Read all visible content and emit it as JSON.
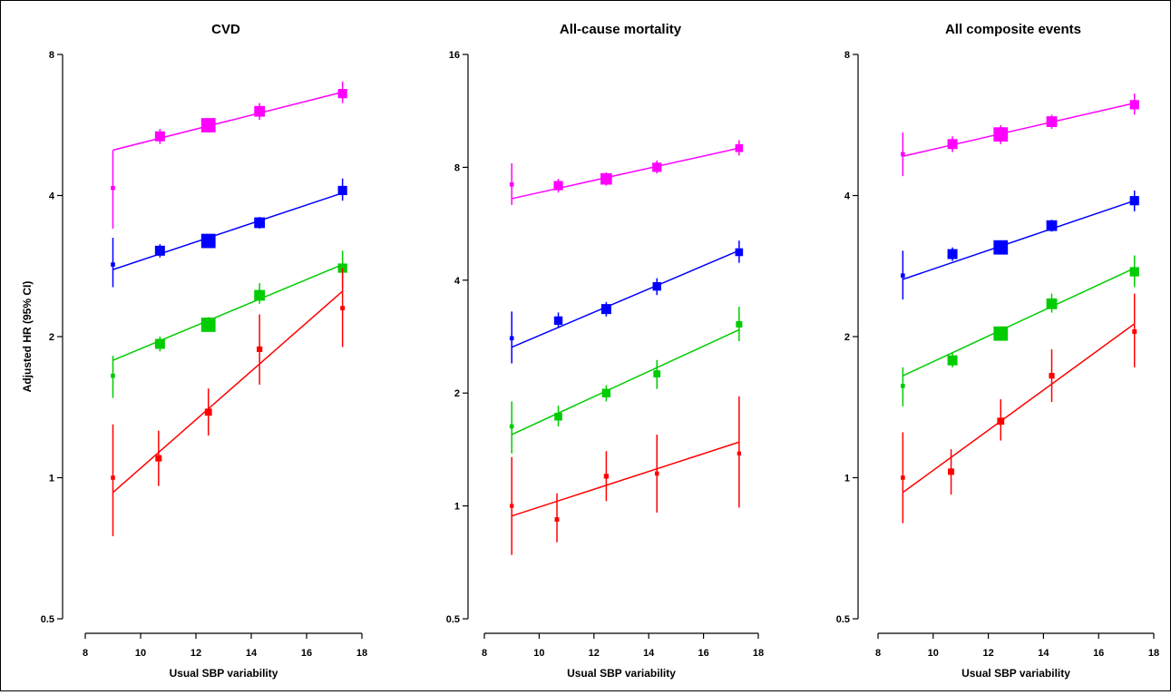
{
  "chart_data": [
    {
      "type": "scatter",
      "title": "CVD",
      "xlabel": "Usual SBP variability",
      "ylabel": "Adjusted HR (95% CI)",
      "xlim": [
        8,
        18
      ],
      "ylim": [
        0.5,
        8
      ],
      "y_scale": "log",
      "x_ticks": [
        8,
        10,
        12,
        14,
        16,
        18
      ],
      "y_ticks": [
        0.5,
        1,
        2,
        4,
        8
      ],
      "series": [
        {
          "color": "#ff00ff",
          "points": [
            {
              "x": 9.0,
              "y": 4.15,
              "lo": 3.4,
              "hi": 5.0,
              "w": 0.1
            },
            {
              "x": 10.7,
              "y": 5.35,
              "lo": 5.15,
              "hi": 5.55,
              "w": 0.5
            },
            {
              "x": 12.45,
              "y": 5.65,
              "lo": 5.45,
              "hi": 5.85,
              "w": 0.8
            },
            {
              "x": 14.3,
              "y": 6.05,
              "lo": 5.8,
              "hi": 6.3,
              "w": 0.55
            },
            {
              "x": 17.3,
              "y": 6.6,
              "lo": 6.3,
              "hi": 7.0,
              "w": 0.45
            }
          ],
          "fit": [
            [
              9.0,
              5.0
            ],
            [
              17.3,
              6.65
            ]
          ]
        },
        {
          "color": "#0000ff",
          "points": [
            {
              "x": 9.0,
              "y": 2.85,
              "lo": 2.55,
              "hi": 3.25,
              "w": 0.1
            },
            {
              "x": 10.7,
              "y": 3.05,
              "lo": 2.95,
              "hi": 3.15,
              "w": 0.5
            },
            {
              "x": 12.45,
              "y": 3.2,
              "lo": 3.12,
              "hi": 3.3,
              "w": 0.8
            },
            {
              "x": 14.3,
              "y": 3.5,
              "lo": 3.4,
              "hi": 3.6,
              "w": 0.55
            },
            {
              "x": 17.3,
              "y": 4.1,
              "lo": 3.9,
              "hi": 4.35,
              "w": 0.45
            }
          ],
          "fit": [
            [
              9.0,
              2.78
            ],
            [
              17.3,
              4.05
            ]
          ]
        },
        {
          "color": "#00cc00",
          "points": [
            {
              "x": 9.0,
              "y": 1.65,
              "lo": 1.48,
              "hi": 1.82,
              "w": 0.1
            },
            {
              "x": 10.7,
              "y": 1.93,
              "lo": 1.86,
              "hi": 2.0,
              "w": 0.5
            },
            {
              "x": 12.45,
              "y": 2.12,
              "lo": 2.05,
              "hi": 2.2,
              "w": 0.8
            },
            {
              "x": 14.3,
              "y": 2.45,
              "lo": 2.35,
              "hi": 2.6,
              "w": 0.55
            },
            {
              "x": 17.3,
              "y": 2.8,
              "lo": 2.55,
              "hi": 3.05,
              "w": 0.45
            }
          ],
          "fit": [
            [
              9.0,
              1.78
            ],
            [
              17.3,
              2.85
            ]
          ]
        },
        {
          "color": "#ff0000",
          "points": [
            {
              "x": 9.0,
              "y": 1.0,
              "lo": 0.75,
              "hi": 1.3,
              "w": 0.1
            },
            {
              "x": 10.65,
              "y": 1.1,
              "lo": 0.96,
              "hi": 1.26,
              "w": 0.25
            },
            {
              "x": 12.45,
              "y": 1.38,
              "lo": 1.23,
              "hi": 1.55,
              "w": 0.3
            },
            {
              "x": 14.3,
              "y": 1.88,
              "lo": 1.58,
              "hi": 2.23,
              "w": 0.2
            },
            {
              "x": 17.3,
              "y": 2.3,
              "lo": 1.9,
              "hi": 2.8,
              "w": 0.12
            }
          ],
          "fit": [
            [
              9.0,
              0.93
            ],
            [
              17.3,
              2.5
            ]
          ]
        }
      ]
    },
    {
      "type": "scatter",
      "title": "All-cause mortality",
      "xlabel": "Usual SBP variability",
      "xlim": [
        8,
        18
      ],
      "ylim": [
        0.5,
        16
      ],
      "y_scale": "log",
      "x_ticks": [
        8,
        10,
        12,
        14,
        16,
        18
      ],
      "y_ticks": [
        0.5,
        1,
        2,
        4,
        8,
        16
      ],
      "series": [
        {
          "color": "#ff00ff",
          "points": [
            {
              "x": 9.0,
              "y": 7.2,
              "lo": 6.35,
              "hi": 8.2,
              "w": 0.1
            },
            {
              "x": 10.7,
              "y": 7.15,
              "lo": 6.85,
              "hi": 7.45,
              "w": 0.45
            },
            {
              "x": 12.45,
              "y": 7.45,
              "lo": 7.15,
              "hi": 7.75,
              "w": 0.6
            },
            {
              "x": 14.3,
              "y": 8.0,
              "lo": 7.7,
              "hi": 8.35,
              "w": 0.45
            },
            {
              "x": 17.3,
              "y": 9.0,
              "lo": 8.6,
              "hi": 9.45,
              "w": 0.35
            }
          ],
          "fit": [
            [
              9.0,
              6.6
            ],
            [
              17.3,
              9.0
            ]
          ]
        },
        {
          "color": "#0000ff",
          "points": [
            {
              "x": 9.0,
              "y": 2.8,
              "lo": 2.4,
              "hi": 3.3,
              "w": 0.1
            },
            {
              "x": 10.7,
              "y": 3.12,
              "lo": 2.98,
              "hi": 3.28,
              "w": 0.4
            },
            {
              "x": 12.45,
              "y": 3.35,
              "lo": 3.2,
              "hi": 3.5,
              "w": 0.5
            },
            {
              "x": 14.3,
              "y": 3.85,
              "lo": 3.65,
              "hi": 4.05,
              "w": 0.4
            },
            {
              "x": 17.3,
              "y": 4.75,
              "lo": 4.45,
              "hi": 5.1,
              "w": 0.35
            }
          ],
          "fit": [
            [
              9.0,
              2.65
            ],
            [
              17.3,
              4.8
            ]
          ]
        },
        {
          "color": "#00cc00",
          "points": [
            {
              "x": 9.0,
              "y": 1.63,
              "lo": 1.38,
              "hi": 1.9,
              "w": 0.1
            },
            {
              "x": 10.7,
              "y": 1.73,
              "lo": 1.63,
              "hi": 1.85,
              "w": 0.35
            },
            {
              "x": 12.45,
              "y": 2.0,
              "lo": 1.9,
              "hi": 2.1,
              "w": 0.4
            },
            {
              "x": 14.3,
              "y": 2.25,
              "lo": 2.05,
              "hi": 2.45,
              "w": 0.3
            },
            {
              "x": 17.3,
              "y": 3.05,
              "lo": 2.75,
              "hi": 3.4,
              "w": 0.25
            }
          ],
          "fit": [
            [
              9.0,
              1.55
            ],
            [
              17.3,
              2.95
            ]
          ]
        },
        {
          "color": "#ff0000",
          "points": [
            {
              "x": 9.0,
              "y": 1.0,
              "lo": 0.74,
              "hi": 1.35,
              "w": 0.08
            },
            {
              "x": 10.65,
              "y": 0.92,
              "lo": 0.8,
              "hi": 1.08,
              "w": 0.12
            },
            {
              "x": 12.45,
              "y": 1.2,
              "lo": 1.03,
              "hi": 1.4,
              "w": 0.14
            },
            {
              "x": 14.3,
              "y": 1.22,
              "lo": 0.96,
              "hi": 1.55,
              "w": 0.1
            },
            {
              "x": 17.3,
              "y": 1.38,
              "lo": 0.99,
              "hi": 1.96,
              "w": 0.08
            }
          ],
          "fit": [
            [
              9.0,
              0.94
            ],
            [
              17.3,
              1.48
            ]
          ]
        }
      ]
    },
    {
      "type": "scatter",
      "title": "All composite events",
      "xlabel": "Usual SBP variability",
      "xlim": [
        8,
        18
      ],
      "ylim": [
        0.5,
        8
      ],
      "y_scale": "log",
      "x_ticks": [
        8,
        10,
        12,
        14,
        16,
        18
      ],
      "y_ticks": [
        0.5,
        1,
        2,
        4,
        8
      ],
      "series": [
        {
          "color": "#ff00ff",
          "points": [
            {
              "x": 8.9,
              "y": 4.9,
              "lo": 4.4,
              "hi": 5.45,
              "w": 0.1
            },
            {
              "x": 10.7,
              "y": 5.15,
              "lo": 4.95,
              "hi": 5.35,
              "w": 0.5
            },
            {
              "x": 12.45,
              "y": 5.4,
              "lo": 5.15,
              "hi": 5.65,
              "w": 0.8
            },
            {
              "x": 14.3,
              "y": 5.75,
              "lo": 5.55,
              "hi": 5.95,
              "w": 0.55
            },
            {
              "x": 17.3,
              "y": 6.25,
              "lo": 5.95,
              "hi": 6.6,
              "w": 0.45
            }
          ],
          "fit": [
            [
              8.9,
              4.85
            ],
            [
              17.3,
              6.3
            ]
          ]
        },
        {
          "color": "#0000ff",
          "points": [
            {
              "x": 8.9,
              "y": 2.7,
              "lo": 2.4,
              "hi": 3.05,
              "w": 0.1
            },
            {
              "x": 10.7,
              "y": 3.0,
              "lo": 2.9,
              "hi": 3.1,
              "w": 0.5
            },
            {
              "x": 12.45,
              "y": 3.1,
              "lo": 3.0,
              "hi": 3.2,
              "w": 0.8
            },
            {
              "x": 14.3,
              "y": 3.45,
              "lo": 3.35,
              "hi": 3.55,
              "w": 0.55
            },
            {
              "x": 17.3,
              "y": 3.9,
              "lo": 3.7,
              "hi": 4.1,
              "w": 0.45
            }
          ],
          "fit": [
            [
              8.9,
              2.65
            ],
            [
              17.3,
              3.9
            ]
          ]
        },
        {
          "color": "#00cc00",
          "points": [
            {
              "x": 8.9,
              "y": 1.57,
              "lo": 1.42,
              "hi": 1.72,
              "w": 0.1
            },
            {
              "x": 10.7,
              "y": 1.78,
              "lo": 1.72,
              "hi": 1.85,
              "w": 0.5
            },
            {
              "x": 12.45,
              "y": 2.03,
              "lo": 1.96,
              "hi": 2.1,
              "w": 0.8
            },
            {
              "x": 14.3,
              "y": 2.35,
              "lo": 2.25,
              "hi": 2.47,
              "w": 0.55
            },
            {
              "x": 17.3,
              "y": 2.75,
              "lo": 2.55,
              "hi": 2.98,
              "w": 0.45
            }
          ],
          "fit": [
            [
              8.9,
              1.65
            ],
            [
              17.3,
              2.8
            ]
          ]
        },
        {
          "color": "#ff0000",
          "points": [
            {
              "x": 8.9,
              "y": 1.0,
              "lo": 0.8,
              "hi": 1.25,
              "w": 0.1
            },
            {
              "x": 10.65,
              "y": 1.03,
              "lo": 0.92,
              "hi": 1.15,
              "w": 0.25
            },
            {
              "x": 12.45,
              "y": 1.32,
              "lo": 1.2,
              "hi": 1.47,
              "w": 0.3
            },
            {
              "x": 14.3,
              "y": 1.65,
              "lo": 1.45,
              "hi": 1.88,
              "w": 0.2
            },
            {
              "x": 17.3,
              "y": 2.05,
              "lo": 1.72,
              "hi": 2.47,
              "w": 0.12
            }
          ],
          "fit": [
            [
              8.9,
              0.93
            ],
            [
              17.3,
              2.13
            ]
          ]
        }
      ]
    }
  ]
}
